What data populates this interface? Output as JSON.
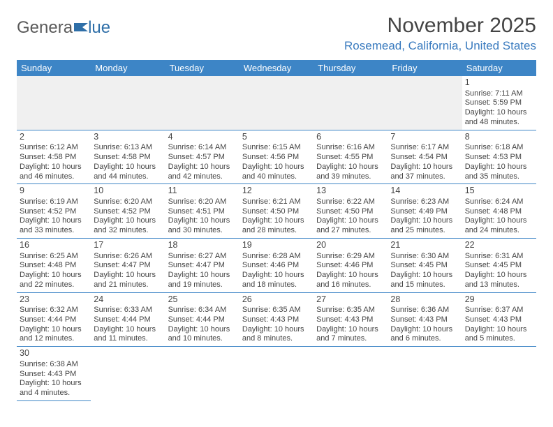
{
  "logo": {
    "text1": "Genera",
    "text2": "lue"
  },
  "header": {
    "month_title": "November 2025",
    "location": "Rosemead, California, United States"
  },
  "colors": {
    "header_bg": "#3d85c6",
    "header_fg": "#ffffff",
    "accent": "#3a7bbf",
    "rule": "#3d85c6",
    "blank_bg": "#f0f0f0"
  },
  "weekdays": [
    "Sunday",
    "Monday",
    "Tuesday",
    "Wednesday",
    "Thursday",
    "Friday",
    "Saturday"
  ],
  "cells": [
    {
      "blank": true
    },
    {
      "blank": true
    },
    {
      "blank": true
    },
    {
      "blank": true
    },
    {
      "blank": true
    },
    {
      "blank": true
    },
    {
      "day": "1",
      "sunrise": "Sunrise: 7:11 AM",
      "sunset": "Sunset: 5:59 PM",
      "daylight1": "Daylight: 10 hours",
      "daylight2": "and 48 minutes."
    },
    {
      "day": "2",
      "sunrise": "Sunrise: 6:12 AM",
      "sunset": "Sunset: 4:58 PM",
      "daylight1": "Daylight: 10 hours",
      "daylight2": "and 46 minutes."
    },
    {
      "day": "3",
      "sunrise": "Sunrise: 6:13 AM",
      "sunset": "Sunset: 4:58 PM",
      "daylight1": "Daylight: 10 hours",
      "daylight2": "and 44 minutes."
    },
    {
      "day": "4",
      "sunrise": "Sunrise: 6:14 AM",
      "sunset": "Sunset: 4:57 PM",
      "daylight1": "Daylight: 10 hours",
      "daylight2": "and 42 minutes."
    },
    {
      "day": "5",
      "sunrise": "Sunrise: 6:15 AM",
      "sunset": "Sunset: 4:56 PM",
      "daylight1": "Daylight: 10 hours",
      "daylight2": "and 40 minutes."
    },
    {
      "day": "6",
      "sunrise": "Sunrise: 6:16 AM",
      "sunset": "Sunset: 4:55 PM",
      "daylight1": "Daylight: 10 hours",
      "daylight2": "and 39 minutes."
    },
    {
      "day": "7",
      "sunrise": "Sunrise: 6:17 AM",
      "sunset": "Sunset: 4:54 PM",
      "daylight1": "Daylight: 10 hours",
      "daylight2": "and 37 minutes."
    },
    {
      "day": "8",
      "sunrise": "Sunrise: 6:18 AM",
      "sunset": "Sunset: 4:53 PM",
      "daylight1": "Daylight: 10 hours",
      "daylight2": "and 35 minutes."
    },
    {
      "day": "9",
      "sunrise": "Sunrise: 6:19 AM",
      "sunset": "Sunset: 4:52 PM",
      "daylight1": "Daylight: 10 hours",
      "daylight2": "and 33 minutes."
    },
    {
      "day": "10",
      "sunrise": "Sunrise: 6:20 AM",
      "sunset": "Sunset: 4:52 PM",
      "daylight1": "Daylight: 10 hours",
      "daylight2": "and 32 minutes."
    },
    {
      "day": "11",
      "sunrise": "Sunrise: 6:20 AM",
      "sunset": "Sunset: 4:51 PM",
      "daylight1": "Daylight: 10 hours",
      "daylight2": "and 30 minutes."
    },
    {
      "day": "12",
      "sunrise": "Sunrise: 6:21 AM",
      "sunset": "Sunset: 4:50 PM",
      "daylight1": "Daylight: 10 hours",
      "daylight2": "and 28 minutes."
    },
    {
      "day": "13",
      "sunrise": "Sunrise: 6:22 AM",
      "sunset": "Sunset: 4:50 PM",
      "daylight1": "Daylight: 10 hours",
      "daylight2": "and 27 minutes."
    },
    {
      "day": "14",
      "sunrise": "Sunrise: 6:23 AM",
      "sunset": "Sunset: 4:49 PM",
      "daylight1": "Daylight: 10 hours",
      "daylight2": "and 25 minutes."
    },
    {
      "day": "15",
      "sunrise": "Sunrise: 6:24 AM",
      "sunset": "Sunset: 4:48 PM",
      "daylight1": "Daylight: 10 hours",
      "daylight2": "and 24 minutes."
    },
    {
      "day": "16",
      "sunrise": "Sunrise: 6:25 AM",
      "sunset": "Sunset: 4:48 PM",
      "daylight1": "Daylight: 10 hours",
      "daylight2": "and 22 minutes."
    },
    {
      "day": "17",
      "sunrise": "Sunrise: 6:26 AM",
      "sunset": "Sunset: 4:47 PM",
      "daylight1": "Daylight: 10 hours",
      "daylight2": "and 21 minutes."
    },
    {
      "day": "18",
      "sunrise": "Sunrise: 6:27 AM",
      "sunset": "Sunset: 4:47 PM",
      "daylight1": "Daylight: 10 hours",
      "daylight2": "and 19 minutes."
    },
    {
      "day": "19",
      "sunrise": "Sunrise: 6:28 AM",
      "sunset": "Sunset: 4:46 PM",
      "daylight1": "Daylight: 10 hours",
      "daylight2": "and 18 minutes."
    },
    {
      "day": "20",
      "sunrise": "Sunrise: 6:29 AM",
      "sunset": "Sunset: 4:46 PM",
      "daylight1": "Daylight: 10 hours",
      "daylight2": "and 16 minutes."
    },
    {
      "day": "21",
      "sunrise": "Sunrise: 6:30 AM",
      "sunset": "Sunset: 4:45 PM",
      "daylight1": "Daylight: 10 hours",
      "daylight2": "and 15 minutes."
    },
    {
      "day": "22",
      "sunrise": "Sunrise: 6:31 AM",
      "sunset": "Sunset: 4:45 PM",
      "daylight1": "Daylight: 10 hours",
      "daylight2": "and 13 minutes."
    },
    {
      "day": "23",
      "sunrise": "Sunrise: 6:32 AM",
      "sunset": "Sunset: 4:44 PM",
      "daylight1": "Daylight: 10 hours",
      "daylight2": "and 12 minutes."
    },
    {
      "day": "24",
      "sunrise": "Sunrise: 6:33 AM",
      "sunset": "Sunset: 4:44 PM",
      "daylight1": "Daylight: 10 hours",
      "daylight2": "and 11 minutes."
    },
    {
      "day": "25",
      "sunrise": "Sunrise: 6:34 AM",
      "sunset": "Sunset: 4:44 PM",
      "daylight1": "Daylight: 10 hours",
      "daylight2": "and 10 minutes."
    },
    {
      "day": "26",
      "sunrise": "Sunrise: 6:35 AM",
      "sunset": "Sunset: 4:43 PM",
      "daylight1": "Daylight: 10 hours",
      "daylight2": "and 8 minutes."
    },
    {
      "day": "27",
      "sunrise": "Sunrise: 6:35 AM",
      "sunset": "Sunset: 4:43 PM",
      "daylight1": "Daylight: 10 hours",
      "daylight2": "and 7 minutes."
    },
    {
      "day": "28",
      "sunrise": "Sunrise: 6:36 AM",
      "sunset": "Sunset: 4:43 PM",
      "daylight1": "Daylight: 10 hours",
      "daylight2": "and 6 minutes."
    },
    {
      "day": "29",
      "sunrise": "Sunrise: 6:37 AM",
      "sunset": "Sunset: 4:43 PM",
      "daylight1": "Daylight: 10 hours",
      "daylight2": "and 5 minutes."
    },
    {
      "day": "30",
      "sunrise": "Sunrise: 6:38 AM",
      "sunset": "Sunset: 4:43 PM",
      "daylight1": "Daylight: 10 hours",
      "daylight2": "and 4 minutes."
    },
    {
      "blank": true,
      "trailing": true
    },
    {
      "blank": true,
      "trailing": true
    },
    {
      "blank": true,
      "trailing": true
    },
    {
      "blank": true,
      "trailing": true
    },
    {
      "blank": true,
      "trailing": true
    },
    {
      "blank": true,
      "trailing": true
    }
  ]
}
